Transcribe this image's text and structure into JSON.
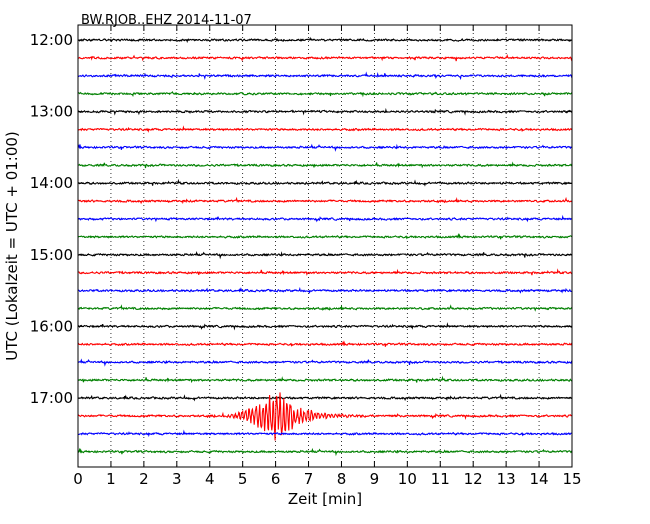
{
  "chart_data": {
    "type": "line",
    "title": "BW.RJOB..EHZ 2014-11-07",
    "xlabel": "Zeit  [min]",
    "ylabel": "UTC (Lokalzeit = UTC + 01:00)",
    "xlim": [
      0,
      15
    ],
    "x_ticks": [
      "0",
      "1",
      "2",
      "3",
      "4",
      "5",
      "6",
      "7",
      "8",
      "9",
      "10",
      "11",
      "12",
      "13",
      "14",
      "15"
    ],
    "y_ticks": [
      "12:00",
      "13:00",
      "14:00",
      "15:00",
      "16:00",
      "17:00"
    ],
    "grid": {
      "x": "dotted",
      "y": "none"
    },
    "trace_colors": [
      "#000000",
      "#ff0000",
      "#0000ff",
      "#008000"
    ],
    "traces": [
      {
        "start": "12:00",
        "minutes": 15,
        "color": "#000000"
      },
      {
        "start": "12:15",
        "minutes": 15,
        "color": "#ff0000"
      },
      {
        "start": "12:30",
        "minutes": 15,
        "color": "#0000ff"
      },
      {
        "start": "12:45",
        "minutes": 15,
        "color": "#008000"
      },
      {
        "start": "13:00",
        "minutes": 15,
        "color": "#000000"
      },
      {
        "start": "13:15",
        "minutes": 15,
        "color": "#ff0000"
      },
      {
        "start": "13:30",
        "minutes": 15,
        "color": "#0000ff"
      },
      {
        "start": "13:45",
        "minutes": 15,
        "color": "#008000"
      },
      {
        "start": "14:00",
        "minutes": 15,
        "color": "#000000"
      },
      {
        "start": "14:15",
        "minutes": 15,
        "color": "#ff0000"
      },
      {
        "start": "14:30",
        "minutes": 15,
        "color": "#0000ff"
      },
      {
        "start": "14:45",
        "minutes": 15,
        "color": "#008000"
      },
      {
        "start": "15:00",
        "minutes": 15,
        "color": "#000000"
      },
      {
        "start": "15:15",
        "minutes": 15,
        "color": "#ff0000"
      },
      {
        "start": "15:30",
        "minutes": 15,
        "color": "#0000ff"
      },
      {
        "start": "15:45",
        "minutes": 15,
        "color": "#008000"
      },
      {
        "start": "16:00",
        "minutes": 15,
        "color": "#000000"
      },
      {
        "start": "16:15",
        "minutes": 15,
        "color": "#ff0000"
      },
      {
        "start": "16:30",
        "minutes": 15,
        "color": "#0000ff"
      },
      {
        "start": "16:45",
        "minutes": 15,
        "color": "#008000"
      },
      {
        "start": "17:00",
        "minutes": 15,
        "color": "#000000"
      },
      {
        "start": "17:15",
        "minutes": 15,
        "color": "#ff0000",
        "event": {
          "onset_min": 4.3,
          "peak_min": 6.0,
          "end_min": 8.8,
          "peak_amplitude_rel": 12
        }
      },
      {
        "start": "17:30",
        "minutes": 15,
        "color": "#0000ff"
      },
      {
        "start": "17:45",
        "minutes": 15,
        "color": "#008000"
      }
    ]
  }
}
